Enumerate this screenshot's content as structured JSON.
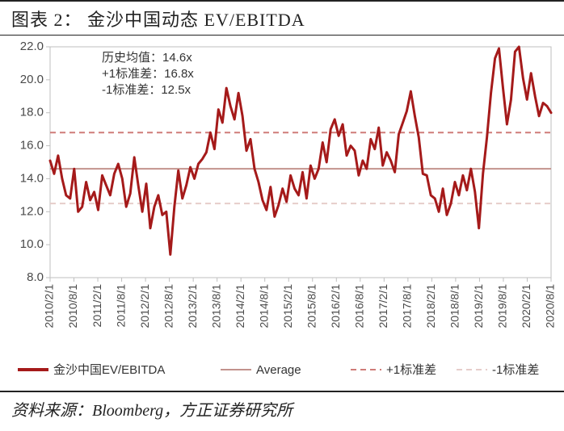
{
  "title": "图表 2：  金沙中国动态 EV/EBITDA",
  "source": "资料来源：Bloomberg，方正证券研究所",
  "chart": {
    "type": "line",
    "background_color": "#ffffff",
    "plot_border_color": "#bfbfbf",
    "plot_border_width": 1,
    "y_axis": {
      "min": 8.0,
      "max": 22.0,
      "tick_step": 2.0,
      "tick_labels": [
        "8.0",
        "10.0",
        "12.0",
        "14.0",
        "16.0",
        "18.0",
        "20.0",
        "22.0"
      ],
      "tick_color": "#4a4a4a",
      "fontsize": 15
    },
    "x_axis": {
      "categories": [
        "2010/2/1",
        "2010/8/1",
        "2011/2/1",
        "2011/8/1",
        "2012/2/1",
        "2012/8/1",
        "2013/2/1",
        "2013/8/1",
        "2014/2/1",
        "2014/8/1",
        "2015/2/1",
        "2015/8/1",
        "2016/2/1",
        "2016/8/1",
        "2017/2/1",
        "2017/8/1",
        "2018/2/1",
        "2018/8/1",
        "2019/2/1",
        "2019/8/1",
        "2020/2/1",
        "2020/8/1"
      ],
      "rotation": -90,
      "fontsize": 14,
      "tick_color": "#4a4a4a"
    },
    "reference_lines": {
      "average": {
        "value": 14.6,
        "color": "#c2928d",
        "width": 2,
        "dash": "none",
        "label": "Average"
      },
      "plus1sd": {
        "value": 16.8,
        "color": "#cf7c78",
        "width": 2,
        "dash": "7,5",
        "label": "+1标准差"
      },
      "minus1sd": {
        "value": 12.5,
        "color": "#e6cdca",
        "width": 2,
        "dash": "7,5",
        "label": "-1标准差"
      }
    },
    "series": {
      "name": "金沙中国EV/EBITDA",
      "color": "#a51a1a",
      "width": 3,
      "data": [
        15.1,
        14.3,
        15.4,
        14.0,
        13.0,
        12.8,
        14.6,
        12.0,
        12.3,
        13.8,
        12.7,
        13.2,
        12.1,
        14.2,
        13.6,
        13.0,
        14.3,
        14.9,
        14.0,
        12.3,
        13.1,
        15.3,
        13.6,
        12.0,
        13.7,
        11.0,
        12.3,
        13.0,
        11.8,
        12.0,
        9.4,
        12.3,
        14.5,
        12.8,
        13.6,
        14.7,
        14.0,
        14.9,
        15.2,
        15.6,
        16.8,
        15.8,
        18.2,
        17.4,
        19.5,
        18.4,
        17.6,
        19.2,
        17.8,
        15.7,
        16.4,
        14.6,
        13.8,
        12.7,
        12.1,
        13.5,
        11.7,
        12.4,
        13.4,
        12.6,
        14.2,
        13.4,
        13.0,
        14.4,
        12.8,
        14.8,
        14.0,
        14.6,
        16.2,
        15.0,
        17.0,
        17.6,
        16.6,
        17.3,
        15.4,
        16.0,
        15.7,
        14.2,
        15.1,
        14.6,
        16.4,
        15.8,
        17.1,
        14.8,
        15.6,
        15.1,
        14.4,
        16.7,
        17.4,
        18.1,
        19.3,
        17.8,
        16.5,
        14.3,
        14.2,
        13.0,
        12.8,
        12.0,
        13.4,
        11.8,
        12.5,
        13.8,
        13.0,
        14.2,
        13.3,
        14.6,
        13.2,
        11.0,
        14.3,
        16.5,
        19.2,
        21.3,
        21.9,
        19.5,
        17.3,
        18.8,
        21.7,
        22.0,
        20.1,
        18.8,
        20.4,
        19.0,
        17.8,
        18.6,
        18.4,
        18.0
      ]
    },
    "stats_box": {
      "lines": [
        "历史均值：14.6x",
        "+1标准差：16.8x",
        "-1标准差：12.5x"
      ],
      "fontsize": 15,
      "color": "#333"
    },
    "legend": {
      "items": [
        {
          "label": "金沙中国EV/EBITDA",
          "color": "#a51a1a",
          "style": "solid",
          "width": 4
        },
        {
          "label": "Average",
          "color": "#c2928d",
          "style": "solid",
          "width": 2
        },
        {
          "label": "+1标准差",
          "color": "#cf7c78",
          "style": "dash",
          "width": 2
        },
        {
          "label": "-1标准差",
          "color": "#e6cdca",
          "style": "dash",
          "width": 2
        }
      ],
      "fontsize": 15
    }
  }
}
